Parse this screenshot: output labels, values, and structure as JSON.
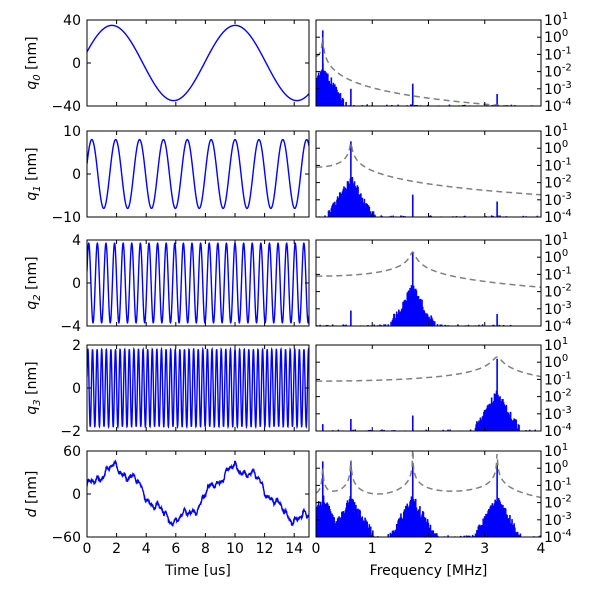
{
  "colors": {
    "signal": "#0000ff",
    "envelope": "#808080",
    "axis": "#000000"
  },
  "chart_data": {
    "type": "line",
    "layout": "5x2 grid",
    "time_axis": {
      "xlabel": "Time [us]",
      "xlim": [
        0,
        15
      ],
      "ticks": [
        "0",
        "2",
        "4",
        "6",
        "8",
        "10",
        "12",
        "14"
      ]
    },
    "freq_axis": {
      "xlabel": "Frequency [MHz]",
      "xlim": [
        0,
        4
      ],
      "ticks": [
        "0",
        "1",
        "2",
        "3",
        "4"
      ],
      "yscale": "log",
      "ylim_exp": [
        -4,
        1
      ]
    },
    "log_ticks": [
      {
        "base": "10",
        "exp": "1"
      },
      {
        "base": "10",
        "exp": "0"
      },
      {
        "base": "10",
        "exp": "-1"
      },
      {
        "base": "10",
        "exp": "-2"
      },
      {
        "base": "10",
        "exp": "-3"
      },
      {
        "base": "10",
        "exp": "-4"
      }
    ],
    "rows": [
      {
        "name": "q0",
        "ylabel_sym": "q",
        "ylabel_sub": "0",
        "ylabel_unit": " [nm]",
        "ylim": [
          -40,
          40
        ],
        "yticks": [
          "40",
          "0",
          "−40"
        ],
        "amplitude": 35,
        "freq_mhz": 0.12,
        "peaks": [
          {
            "f": 0.12,
            "exp": 0.4
          },
          {
            "f": 0.62,
            "exp": -3.0
          },
          {
            "f": 1.72,
            "exp": -2.7
          },
          {
            "f": 3.22,
            "exp": -3.3
          }
        ]
      },
      {
        "name": "q1",
        "ylabel_sym": "q",
        "ylabel_sub": "1",
        "ylabel_unit": " [nm]",
        "ylim": [
          -10,
          10
        ],
        "yticks": [
          "10",
          "0",
          "−10"
        ],
        "amplitude": 8,
        "freq_mhz": 0.62,
        "peaks": [
          {
            "f": 0.62,
            "exp": 0.4
          },
          {
            "f": 1.72,
            "exp": -2.7
          },
          {
            "f": 3.22,
            "exp": -3.1
          }
        ]
      },
      {
        "name": "q2",
        "ylabel_sym": "q",
        "ylabel_sub": "2",
        "ylabel_unit": " [nm]",
        "ylim": [
          -4,
          4
        ],
        "yticks": [
          "4",
          "0",
          "−4"
        ],
        "amplitude": 3.7,
        "freq_mhz": 1.72,
        "peaks": [
          {
            "f": 1.72,
            "exp": 0.3
          },
          {
            "f": 0.62,
            "exp": -3.1
          },
          {
            "f": 3.22,
            "exp": -3.3
          }
        ]
      },
      {
        "name": "q3",
        "ylabel_sym": "q",
        "ylabel_sub": "3",
        "ylabel_unit": " [nm]",
        "ylim": [
          -2,
          2
        ],
        "yticks": [
          "2",
          "0",
          "−2"
        ],
        "amplitude": 1.8,
        "freq_mhz": 3.22,
        "peaks": [
          {
            "f": 3.22,
            "exp": 0.2
          },
          {
            "f": 0.62,
            "exp": -3.3
          },
          {
            "f": 1.72,
            "exp": -3.1
          },
          {
            "f": 0.12,
            "exp": -3.6
          }
        ]
      },
      {
        "name": "d",
        "ylabel_sym": "d",
        "ylabel_sub": "",
        "ylabel_unit": " [nm]",
        "ylim": [
          -60,
          60
        ],
        "yticks": [
          "60",
          "0",
          "−60"
        ],
        "amplitude": 35,
        "freq_mhz": 0.12,
        "peaks": [
          {
            "f": 0.12,
            "exp": 0.4
          },
          {
            "f": 0.62,
            "exp": 0.4
          },
          {
            "f": 1.72,
            "exp": 0.3
          },
          {
            "f": 3.22,
            "exp": 0.2
          }
        ]
      }
    ]
  }
}
